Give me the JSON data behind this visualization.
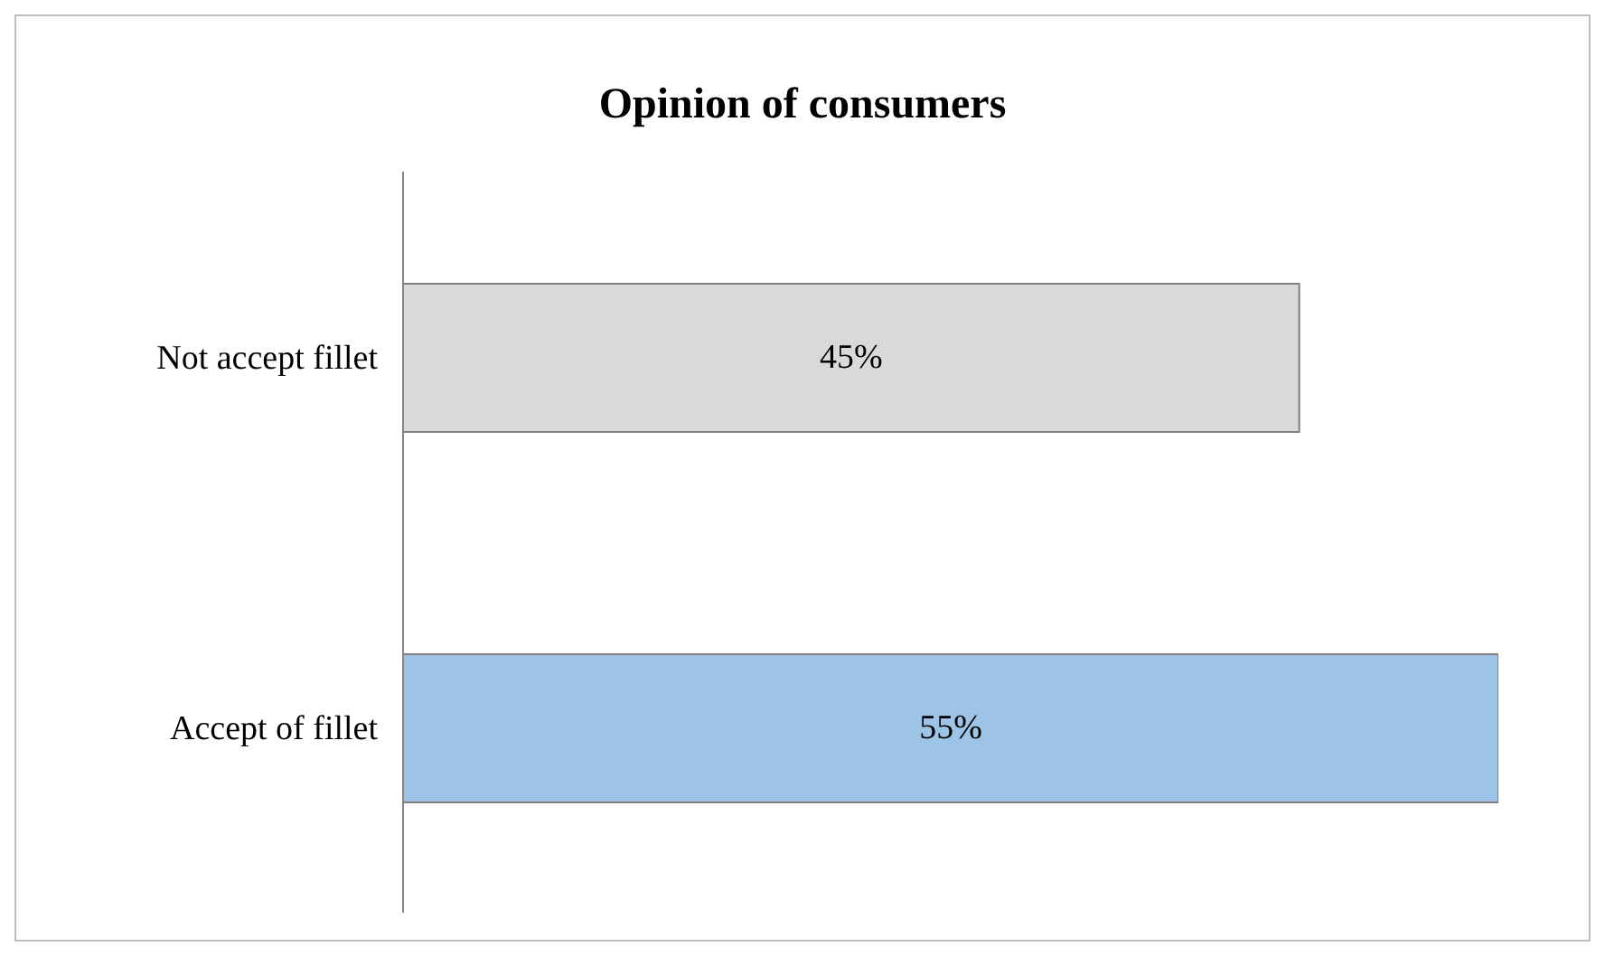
{
  "chart_data": {
    "type": "bar",
    "orientation": "horizontal",
    "title": "Opinion of consumers",
    "categories": [
      "Not accept fillet",
      "Accept of fillet"
    ],
    "values": [
      45,
      55
    ],
    "colors": [
      "#d9d9d9",
      "#9dc3e6"
    ],
    "value_labels": [
      "45%",
      "55%"
    ],
    "tick_labels": "y"
  }
}
